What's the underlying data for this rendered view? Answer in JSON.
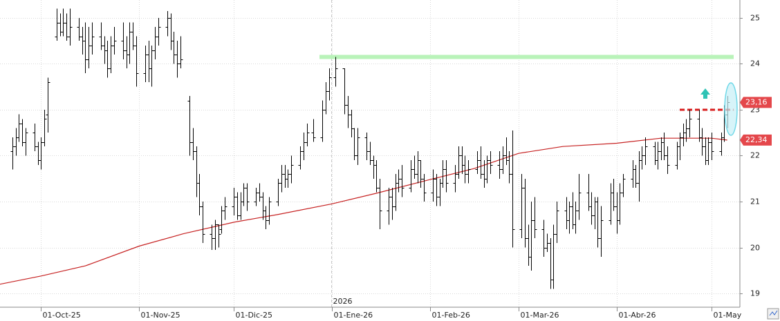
{
  "chart_data": {
    "type": "ohlc",
    "xlim": [
      "2025-09-18",
      "2026-05-10"
    ],
    "ylim": [
      18.7,
      25.39
    ],
    "yticks": [
      19,
      20,
      21,
      22,
      23,
      24,
      25
    ],
    "xticks": [
      {
        "value": "2025-10-01",
        "label": "01-Oct-25"
      },
      {
        "value": "2025-11-01",
        "label": "01-Nov-25"
      },
      {
        "value": "2025-12-01",
        "label": "01-Dic-25"
      },
      {
        "value": "2026-01-01",
        "label": "01-Ene-26"
      },
      {
        "value": "2026-02-01",
        "label": "01-Feb-26"
      },
      {
        "value": "2026-03-01",
        "label": "01-Mar-26"
      },
      {
        "value": "2026-04-01",
        "label": "01-Abr-26"
      },
      {
        "value": "2026-05-01",
        "label": "01-May"
      }
    ],
    "year_marker": {
      "value": "2026-01-01",
      "label": "2026"
    },
    "grid": true,
    "color": "#000000",
    "x": [
      "2025-09-22",
      "2025-09-23",
      "2025-09-24",
      "2025-09-25",
      "2025-09-26",
      "2025-09-29",
      "2025-09-30",
      "2025-10-01",
      "2025-10-02",
      "2025-10-03",
      "2025-10-06",
      "2025-10-07",
      "2025-10-08",
      "2025-10-09",
      "2025-10-10",
      "2025-10-13",
      "2025-10-14",
      "2025-10-15",
      "2025-10-16",
      "2025-10-17",
      "2025-10-20",
      "2025-10-21",
      "2025-10-22",
      "2025-10-23",
      "2025-10-24",
      "2025-10-27",
      "2025-10-28",
      "2025-10-29",
      "2025-10-30",
      "2025-10-31",
      "2025-11-03",
      "2025-11-04",
      "2025-11-05",
      "2025-11-06",
      "2025-11-07",
      "2025-11-10",
      "2025-11-11",
      "2025-11-12",
      "2025-11-13",
      "2025-11-14",
      "2025-11-17",
      "2025-11-18",
      "2025-11-19",
      "2025-11-20",
      "2025-11-21",
      "2025-11-24",
      "2025-11-25",
      "2025-11-26",
      "2025-11-27",
      "2025-11-28",
      "2025-12-01",
      "2025-12-02",
      "2025-12-03",
      "2025-12-04",
      "2025-12-05",
      "2025-12-08",
      "2025-12-09",
      "2025-12-10",
      "2025-12-11",
      "2025-12-12",
      "2025-12-15",
      "2025-12-16",
      "2025-12-17",
      "2025-12-18",
      "2025-12-19",
      "2025-12-22",
      "2025-12-23",
      "2025-12-24",
      "2025-12-26",
      "2025-12-29",
      "2025-12-30",
      "2025-12-31",
      "2026-01-02",
      "2026-01-05",
      "2026-01-06",
      "2026-01-07",
      "2026-01-08",
      "2026-01-09",
      "2026-01-12",
      "2026-01-13",
      "2026-01-14",
      "2026-01-15",
      "2026-01-16",
      "2026-01-19",
      "2026-01-20",
      "2026-01-21",
      "2026-01-22",
      "2026-01-23",
      "2026-01-26",
      "2026-01-27",
      "2026-01-28",
      "2026-01-29",
      "2026-01-30",
      "2026-02-02",
      "2026-02-03",
      "2026-02-04",
      "2026-02-05",
      "2026-02-06",
      "2026-02-09",
      "2026-02-10",
      "2026-02-11",
      "2026-02-12",
      "2026-02-13",
      "2026-02-16",
      "2026-02-17",
      "2026-02-18",
      "2026-02-19",
      "2026-02-20",
      "2026-02-23",
      "2026-02-24",
      "2026-02-25",
      "2026-02-26",
      "2026-02-27",
      "2026-03-02",
      "2026-03-03",
      "2026-03-04",
      "2026-03-05",
      "2026-03-06",
      "2026-03-09",
      "2026-03-10",
      "2026-03-11",
      "2026-03-12",
      "2026-03-13",
      "2026-03-16",
      "2026-03-17",
      "2026-03-18",
      "2026-03-19",
      "2026-03-20",
      "2026-03-23",
      "2026-03-24",
      "2026-03-25",
      "2026-03-26",
      "2026-03-27",
      "2026-03-30",
      "2026-03-31",
      "2026-04-01",
      "2026-04-02",
      "2026-04-03",
      "2026-04-06",
      "2026-04-07",
      "2026-04-08",
      "2026-04-09",
      "2026-04-10",
      "2026-04-13",
      "2026-04-14",
      "2026-04-15",
      "2026-04-16",
      "2026-04-17",
      "2026-04-20",
      "2026-04-21",
      "2026-04-22",
      "2026-04-23",
      "2026-04-24",
      "2026-04-27",
      "2026-04-28",
      "2026-04-29",
      "2026-04-30",
      "2026-05-01",
      "2026-05-04",
      "2026-05-05",
      "2026-05-06"
    ],
    "open": [
      22.1,
      22.2,
      22.4,
      22.7,
      22.3,
      22.5,
      22.2,
      21.9,
      22.3,
      22.9,
      24.6,
      24.9,
      24.7,
      24.9,
      24.6,
      24.8,
      24.6,
      24.5,
      24.1,
      24.4,
      24.6,
      24.4,
      24.3,
      23.9,
      24.4,
      24.5,
      24.3,
      24.2,
      24.7,
      24.4,
      23.8,
      24.2,
      23.9,
      24.3,
      24.6,
      24.8,
      25.0,
      24.5,
      24.2,
      24.0,
      23.2,
      22.3,
      22.1,
      21.4,
      20.9,
      20.3,
      20.2,
      20.5,
      20.4,
      20.8,
      20.9,
      21.1,
      20.7,
      21.0,
      21.3,
      21.0,
      21.2,
      21.1,
      20.8,
      20.6,
      21.0,
      21.4,
      21.6,
      21.5,
      21.6,
      21.8,
      22.1,
      22.3,
      22.5,
      22.4,
      23.0,
      23.4,
      23.7,
      23.9,
      23.1,
      22.9,
      22.6,
      22.0,
      22.4,
      22.1,
      21.9,
      21.8,
      21.3,
      20.8,
      21.1,
      20.9,
      21.4,
      21.5,
      21.3,
      21.7,
      21.6,
      21.9,
      21.5,
      21.2,
      21.5,
      21.1,
      21.4,
      21.7,
      21.4,
      21.6,
      22.0,
      21.8,
      21.6,
      21.7,
      21.9,
      21.6,
      21.5,
      21.9,
      21.8,
      21.7,
      22.0,
      21.9,
      21.6,
      20.4,
      21.3,
      20.2,
      19.8,
      20.6,
      20.4,
      20.0,
      20.1,
      19.3,
      20.3,
      20.8,
      20.6,
      20.9,
      20.5,
      20.8,
      21.2,
      20.9,
      20.7,
      21.0,
      20.2,
      20.6,
      21.2,
      20.9,
      20.6,
      21.2,
      21.5,
      21.7,
      21.4,
      21.9,
      22.0,
      22.2,
      21.9,
      22.1,
      22.3,
      22.0,
      21.8,
      22.2,
      22.4,
      22.5,
      22.6,
      22.8,
      22.4,
      22.2,
      21.9,
      22.3,
      22.1,
      22.4,
      22.9
    ],
    "high": [
      22.4,
      22.6,
      22.9,
      22.8,
      22.6,
      22.7,
      22.3,
      22.4,
      23.0,
      23.7,
      25.2,
      25.1,
      25.2,
      25.1,
      25.2,
      25.0,
      24.8,
      24.9,
      24.8,
      24.9,
      24.9,
      24.6,
      24.5,
      24.6,
      24.8,
      24.9,
      24.6,
      24.9,
      24.9,
      24.6,
      24.4,
      24.5,
      24.4,
      24.8,
      25.0,
      25.15,
      25.1,
      24.7,
      24.5,
      24.6,
      23.3,
      22.6,
      22.2,
      21.6,
      21.0,
      20.5,
      20.6,
      20.5,
      20.9,
      21.1,
      21.3,
      21.2,
      21.2,
      21.4,
      21.4,
      21.3,
      21.4,
      21.2,
      20.9,
      21.1,
      21.5,
      21.8,
      21.8,
      21.7,
      22.0,
      22.2,
      22.5,
      22.7,
      22.8,
      23.2,
      23.6,
      23.9,
      24.15,
      23.9,
      23.3,
      23.0,
      22.6,
      22.6,
      22.5,
      22.3,
      22.0,
      21.9,
      21.5,
      21.3,
      21.3,
      21.6,
      21.7,
      21.8,
      21.9,
      22.0,
      22.1,
      21.9,
      21.6,
      21.7,
      21.6,
      21.5,
      21.9,
      21.9,
      21.8,
      22.2,
      22.2,
      22.0,
      21.9,
      22.1,
      22.2,
      21.9,
      22.0,
      22.1,
      22.1,
      22.2,
      22.4,
      22.1,
      22.55,
      21.6,
      21.5,
      20.5,
      21.0,
      21.1,
      20.6,
      20.3,
      20.2,
      20.5,
      21.0,
      21.1,
      21.0,
      21.2,
      21.0,
      21.6,
      21.6,
      21.2,
      21.1,
      21.1,
      20.9,
      21.4,
      21.5,
      21.2,
      21.4,
      21.6,
      21.9,
      21.8,
      22.1,
      22.2,
      22.4,
      22.3,
      22.3,
      22.4,
      22.5,
      22.2,
      22.3,
      22.5,
      22.7,
      22.8,
      23.0,
      23.0,
      22.6,
      22.4,
      22.4,
      22.5,
      22.5,
      23.1,
      23.3
    ],
    "low": [
      21.7,
      22.0,
      22.3,
      22.2,
      22.0,
      22.1,
      21.8,
      21.7,
      22.2,
      22.5,
      24.5,
      24.6,
      24.6,
      24.5,
      24.4,
      24.5,
      24.2,
      23.8,
      23.9,
      24.2,
      24.3,
      24.0,
      23.7,
      23.8,
      24.2,
      24.1,
      23.9,
      24.0,
      24.3,
      23.5,
      23.6,
      23.6,
      23.5,
      24.1,
      24.4,
      24.6,
      24.3,
      24.0,
      23.7,
      23.9,
      22.0,
      21.9,
      21.1,
      20.7,
      20.1,
      19.95,
      19.95,
      20.0,
      20.3,
      20.6,
      20.7,
      20.6,
      20.6,
      20.9,
      20.8,
      20.9,
      21.0,
      20.6,
      20.4,
      20.5,
      20.9,
      21.2,
      21.3,
      21.3,
      21.4,
      21.7,
      21.9,
      22.2,
      22.3,
      22.3,
      22.9,
      23.2,
      23.5,
      22.9,
      22.6,
      22.4,
      21.9,
      21.8,
      21.9,
      21.8,
      21.5,
      21.2,
      20.4,
      20.5,
      20.6,
      20.8,
      21.2,
      21.1,
      21.2,
      21.5,
      21.4,
      21.3,
      21.0,
      21.0,
      20.9,
      20.9,
      21.3,
      21.2,
      21.2,
      21.5,
      21.6,
      21.4,
      21.4,
      21.6,
      21.5,
      21.3,
      21.4,
      21.6,
      21.5,
      21.6,
      21.8,
      21.4,
      20.0,
      20.2,
      20.0,
      19.6,
      19.5,
      20.2,
      19.8,
      19.9,
      19.1,
      19.1,
      20.1,
      20.4,
      20.3,
      20.4,
      20.3,
      20.6,
      20.8,
      20.5,
      20.4,
      20.0,
      19.8,
      20.5,
      20.8,
      20.3,
      20.5,
      21.1,
      21.3,
      21.3,
      21.0,
      21.7,
      21.8,
      21.8,
      21.7,
      21.9,
      21.9,
      21.6,
      21.7,
      21.9,
      22.2,
      22.3,
      22.4,
      22.3,
      22.0,
      21.8,
      21.8,
      21.9,
      22.0,
      22.3,
      22.6
    ],
    "close": [
      22.2,
      22.4,
      22.7,
      22.3,
      22.5,
      22.2,
      21.9,
      22.3,
      22.8,
      23.6,
      24.9,
      24.7,
      24.9,
      24.6,
      24.8,
      24.6,
      24.5,
      24.1,
      24.4,
      24.6,
      24.4,
      24.3,
      23.9,
      24.4,
      24.5,
      24.3,
      24.2,
      24.7,
      24.4,
      23.8,
      24.2,
      23.9,
      24.3,
      24.6,
      24.8,
      25.0,
      24.5,
      24.2,
      24.0,
      24.1,
      22.3,
      22.1,
      21.4,
      20.9,
      20.3,
      20.2,
      20.5,
      20.3,
      20.8,
      20.9,
      21.1,
      20.7,
      21.0,
      21.3,
      21.0,
      21.2,
      21.1,
      20.8,
      20.6,
      21.0,
      21.4,
      21.6,
      21.5,
      21.6,
      21.8,
      22.1,
      22.3,
      22.5,
      22.4,
      23.0,
      23.4,
      23.7,
      23.9,
      23.1,
      22.9,
      22.6,
      22.0,
      22.4,
      22.1,
      21.9,
      21.8,
      21.3,
      20.8,
      21.1,
      20.9,
      21.4,
      21.5,
      21.3,
      21.7,
      21.6,
      21.9,
      21.5,
      21.2,
      21.5,
      21.1,
      21.4,
      21.7,
      21.4,
      21.6,
      22.0,
      21.8,
      21.6,
      21.7,
      21.9,
      21.6,
      21.5,
      21.9,
      21.8,
      21.7,
      22.0,
      21.9,
      21.6,
      20.4,
      21.3,
      20.2,
      19.8,
      20.6,
      20.4,
      20.0,
      20.1,
      19.3,
      20.3,
      20.8,
      20.6,
      20.9,
      20.5,
      20.8,
      21.2,
      20.9,
      20.7,
      21.0,
      20.2,
      20.6,
      21.2,
      20.9,
      20.6,
      21.2,
      21.5,
      21.7,
      21.4,
      21.9,
      22.0,
      22.2,
      21.9,
      22.1,
      22.3,
      22.0,
      21.8,
      22.2,
      22.4,
      22.5,
      22.6,
      22.8,
      22.4,
      22.2,
      21.9,
      22.3,
      22.1,
      22.4,
      22.9,
      23.16
    ],
    "moving_average": {
      "color": "#c62020",
      "x": [
        "2025-09-18",
        "2025-10-01",
        "2025-10-15",
        "2025-11-01",
        "2025-11-15",
        "2025-12-01",
        "2025-12-15",
        "2026-01-01",
        "2026-01-15",
        "2026-02-01",
        "2026-02-15",
        "2026-03-01",
        "2026-03-15",
        "2026-04-01",
        "2026-04-15",
        "2026-05-01",
        "2026-05-06"
      ],
      "values": [
        19.2,
        19.38,
        19.6,
        20.03,
        20.3,
        20.55,
        20.72,
        20.95,
        21.18,
        21.48,
        21.72,
        22.05,
        22.2,
        22.27,
        22.38,
        22.38,
        22.34
      ]
    },
    "levels": [
      {
        "value": 24.15,
        "color": "#b9f3b9",
        "from": "2025-12-28",
        "to": "2026-05-08",
        "dashed": false
      },
      {
        "value": 23.0,
        "color": "#d81e1e",
        "from": "2026-04-21",
        "to": "2026-05-08",
        "dashed": true
      }
    ],
    "price_labels": [
      {
        "value": 23.16,
        "label": "23,16",
        "color": "#e4474b"
      },
      {
        "value": 22.34,
        "label": "22,34",
        "color": "#e4474b"
      }
    ]
  }
}
